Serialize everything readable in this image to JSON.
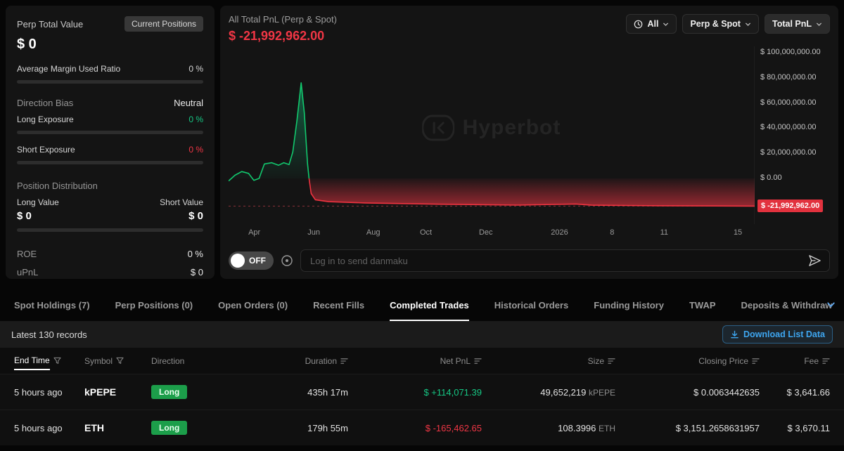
{
  "colors": {
    "green": "#16c784",
    "red": "#f13645",
    "accent_blue": "#3ea6f0",
    "badge_red": "#e2323e",
    "badge_green": "#1c9e4a"
  },
  "left_panel": {
    "title": "Perp Total Value",
    "current_positions_button": "Current Positions",
    "total_value": "$ 0",
    "avg_margin_label": "Average Margin Used Ratio",
    "avg_margin_value": "0 %",
    "direction_bias_label": "Direction Bias",
    "direction_bias_value": "Neutral",
    "long_exposure_label": "Long Exposure",
    "long_exposure_value": "0 %",
    "short_exposure_label": "Short Exposure",
    "short_exposure_value": "0 %",
    "position_distribution_label": "Position Distribution",
    "long_value_label": "Long Value",
    "short_value_label": "Short Value",
    "long_value": "$ 0",
    "short_value": "$ 0",
    "roe_label": "ROE",
    "roe_value": "0 %",
    "upnl_label": "uPnL",
    "upnl_value": "$ 0"
  },
  "pnl_panel": {
    "title": "All Total PnL (Perp & Spot)",
    "value": "$ -21,992,962.00",
    "time_filter": "All",
    "scope_filter": "Perp & Spot",
    "metric_filter": "Total PnL",
    "watermark": "Hyperbot",
    "danmaku_toggle": "OFF",
    "danmaku_placeholder": "Log in to send danmaku"
  },
  "chart_data": {
    "type": "area",
    "title": "All Total PnL (Perp & Spot)",
    "grid": false,
    "legend": "none",
    "current_value": -21992962,
    "current_value_label": "$ -21,992,962.00",
    "y_ticks": [
      "$ 100,000,000.00",
      "$ 80,000,000.00",
      "$ 60,000,000.00",
      "$ 40,000,000.00",
      "$ 20,000,000.00",
      "$ 0.00"
    ],
    "y_tick_values": [
      100000000,
      80000000,
      60000000,
      40000000,
      20000000,
      0
    ],
    "x_ticks": [
      "Apr",
      "Jun",
      "Aug",
      "Oct",
      "Dec",
      "2026",
      "8",
      "11",
      "15"
    ],
    "ylim": [
      -36300000,
      105000000
    ],
    "series": [
      {
        "name": "Total PnL",
        "red_from_index": 16,
        "points": [
          [
            0.0,
            -2000000
          ],
          [
            0.012,
            2500000
          ],
          [
            0.025,
            5500000
          ],
          [
            0.038,
            4000000
          ],
          [
            0.048,
            -1500000
          ],
          [
            0.058,
            0
          ],
          [
            0.068,
            11500000
          ],
          [
            0.082,
            12500000
          ],
          [
            0.095,
            10500000
          ],
          [
            0.105,
            12500000
          ],
          [
            0.115,
            11000000
          ],
          [
            0.122,
            21000000
          ],
          [
            0.13,
            46000000
          ],
          [
            0.138,
            76000000
          ],
          [
            0.144,
            52000000
          ],
          [
            0.15,
            12000000
          ],
          [
            0.153,
            0
          ],
          [
            0.157,
            -12000000
          ],
          [
            0.165,
            -17000000
          ],
          [
            0.19,
            -18500000
          ],
          [
            0.26,
            -19500000
          ],
          [
            0.4,
            -20500000
          ],
          [
            0.55,
            -21200000
          ],
          [
            0.66,
            -20300000
          ],
          [
            0.69,
            -21300000
          ],
          [
            0.82,
            -21700000
          ],
          [
            1.0,
            -22000000
          ]
        ]
      }
    ]
  },
  "tabs": {
    "items": [
      {
        "label": "Spot Holdings (7)",
        "active": false
      },
      {
        "label": "Perp Positions (0)",
        "active": false
      },
      {
        "label": "Open Orders (0)",
        "active": false
      },
      {
        "label": "Recent Fills",
        "active": false
      },
      {
        "label": "Completed Trades",
        "active": true
      },
      {
        "label": "Historical Orders",
        "active": false
      },
      {
        "label": "Funding History",
        "active": false
      },
      {
        "label": "TWAP",
        "active": false
      },
      {
        "label": "Deposits & Withdraw",
        "active": false
      }
    ]
  },
  "records_bar": {
    "label": "Latest 130 records",
    "download_label": "Download List Data"
  },
  "table": {
    "columns": [
      {
        "label": "End Time",
        "icon": "filter",
        "align": "left",
        "active": true
      },
      {
        "label": "Symbol",
        "icon": "filter",
        "align": "left",
        "active": false
      },
      {
        "label": "Direction",
        "icon": "",
        "align": "left",
        "active": false
      },
      {
        "label": "Duration",
        "icon": "sort",
        "align": "right",
        "active": false
      },
      {
        "label": "Net PnL",
        "icon": "sort",
        "align": "right",
        "active": false
      },
      {
        "label": "Size",
        "icon": "sort",
        "align": "right",
        "active": false
      },
      {
        "label": "Closing Price",
        "icon": "sort",
        "align": "right",
        "active": false
      },
      {
        "label": "Fee",
        "icon": "sort",
        "align": "right",
        "active": false
      }
    ],
    "rows": [
      {
        "end_time": "5 hours ago",
        "symbol": "kPEPE",
        "direction": "Long",
        "duration": "435h 17m",
        "net_pnl": "$ +114,071.39",
        "pnl_positive": true,
        "size": "49,652,219",
        "size_unit": "kPEPE",
        "closing_price": "$ 0.0063442635",
        "fee": "$ 3,641.66"
      },
      {
        "end_time": "5 hours ago",
        "symbol": "ETH",
        "direction": "Long",
        "duration": "179h 55m",
        "net_pnl": "$ -165,462.65",
        "pnl_positive": false,
        "size": "108.3996",
        "size_unit": "ETH",
        "closing_price": "$ 3,151.2658631957",
        "fee": "$ 3,670.11"
      }
    ]
  }
}
